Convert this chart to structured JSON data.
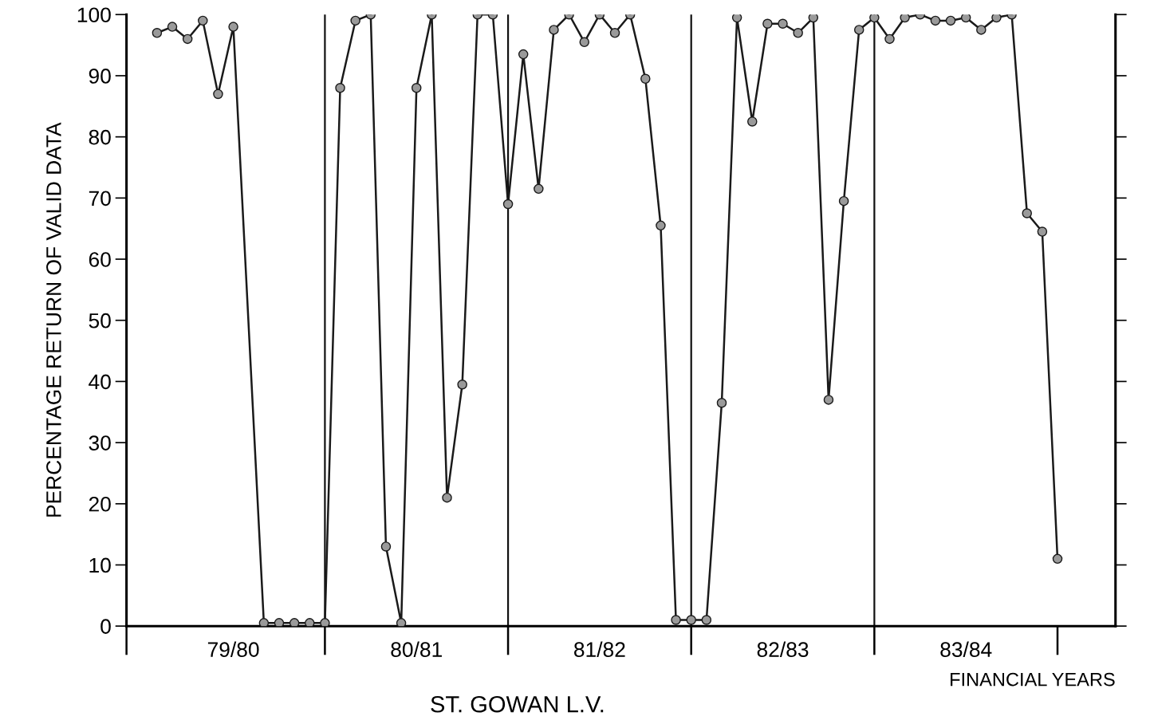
{
  "chart_data": {
    "type": "line",
    "title": "ST. GOWAN L.V.",
    "xlabel": "FINANCIAL YEARS",
    "ylabel": "PERCENTAGE RETURN OF VALID DATA",
    "categories": [
      null,
      null,
      null,
      null,
      null,
      "79/80",
      null,
      null,
      null,
      null,
      null,
      null,
      null,
      null,
      null,
      null,
      null,
      "80/81",
      null,
      null,
      null,
      null,
      null,
      null,
      null,
      null,
      null,
      null,
      null,
      "81/82",
      null,
      null,
      null,
      null,
      null,
      null,
      null,
      null,
      null,
      null,
      null,
      "82/83",
      null,
      null,
      null,
      null,
      null,
      null,
      null,
      null,
      null,
      null,
      null,
      "83/84",
      null,
      null,
      null,
      null,
      null,
      null
    ],
    "series": [
      {
        "color": "#1a1a1a",
        "values": [
          97,
          98,
          96,
          99,
          87,
          98,
          null,
          0.5,
          0.5,
          0.5,
          0.5,
          0.5,
          88,
          99,
          100,
          13,
          0.5,
          88,
          100,
          21,
          39.5,
          100,
          100,
          69,
          93.5,
          71.5,
          97.5,
          100,
          95.5,
          100,
          97,
          100,
          89.5,
          65.5,
          1,
          1,
          1,
          36.5,
          99.5,
          82.5,
          98.5,
          98.5,
          97,
          99.5,
          37,
          69.5,
          97.5,
          99.5,
          96,
          99.5,
          100,
          99,
          99,
          99.5,
          97.5,
          99.5,
          100,
          67.5,
          64.5,
          11
        ]
      }
    ],
    "ylim": [
      0,
      100
    ],
    "yticks": [
      0,
      10,
      20,
      30,
      40,
      50,
      60,
      70,
      80,
      90,
      100
    ],
    "grid": "x",
    "marker": "circle",
    "line_style": "solid"
  }
}
